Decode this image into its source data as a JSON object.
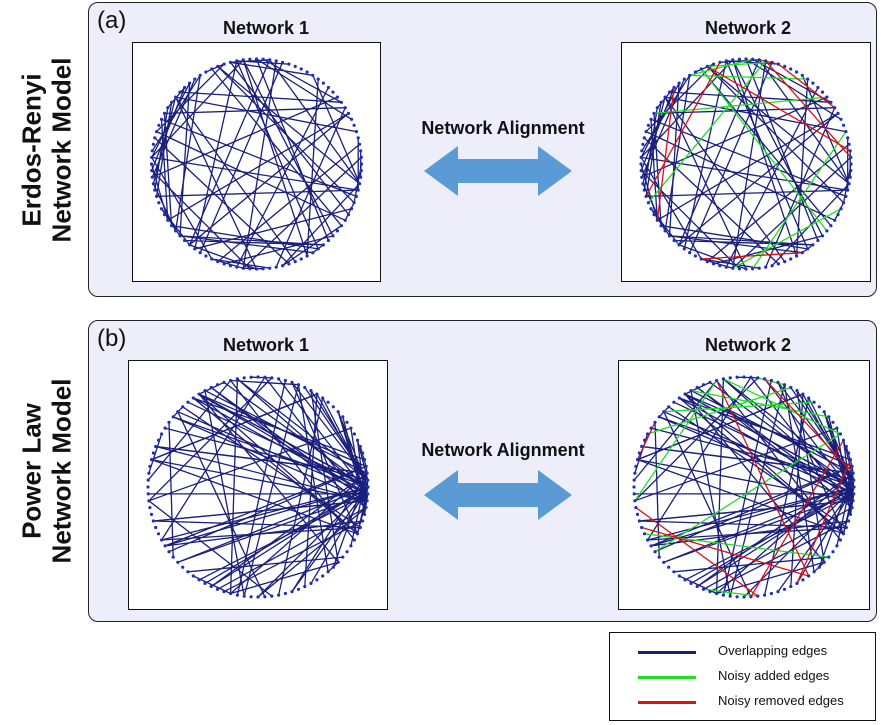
{
  "panels": [
    {
      "label": "(a)",
      "side_title_line1": "Erdos-Renyi",
      "side_title_line2": "Network Model",
      "net1_title": "Network 1",
      "net2_title": "Network 2",
      "center_label": "Network Alignment"
    },
    {
      "label": "(b)",
      "side_title_line1": "Power Law",
      "side_title_line2": "Network Model",
      "net1_title": "Network 1",
      "net2_title": "Network 2",
      "center_label": "Network Alignment"
    }
  ],
  "legend": {
    "items": [
      {
        "label": "Overlapping edges",
        "color": "#1a1f7a"
      },
      {
        "label": "Noisy added edges",
        "color": "#22dd22"
      },
      {
        "label": "Noisy removed edges",
        "color": "#e01010"
      }
    ]
  },
  "colors": {
    "panel_bg": "#eeeefb",
    "edge_overlap": "#1a1f7a",
    "edge_added": "#22dd22",
    "edge_removed": "#e01010",
    "node": "#1f2fb8",
    "arrow": "#5b9bd5"
  },
  "graph_model": {
    "nodes_per_network": 100,
    "panel_a": "erdos-renyi",
    "panel_b": "power-law"
  }
}
